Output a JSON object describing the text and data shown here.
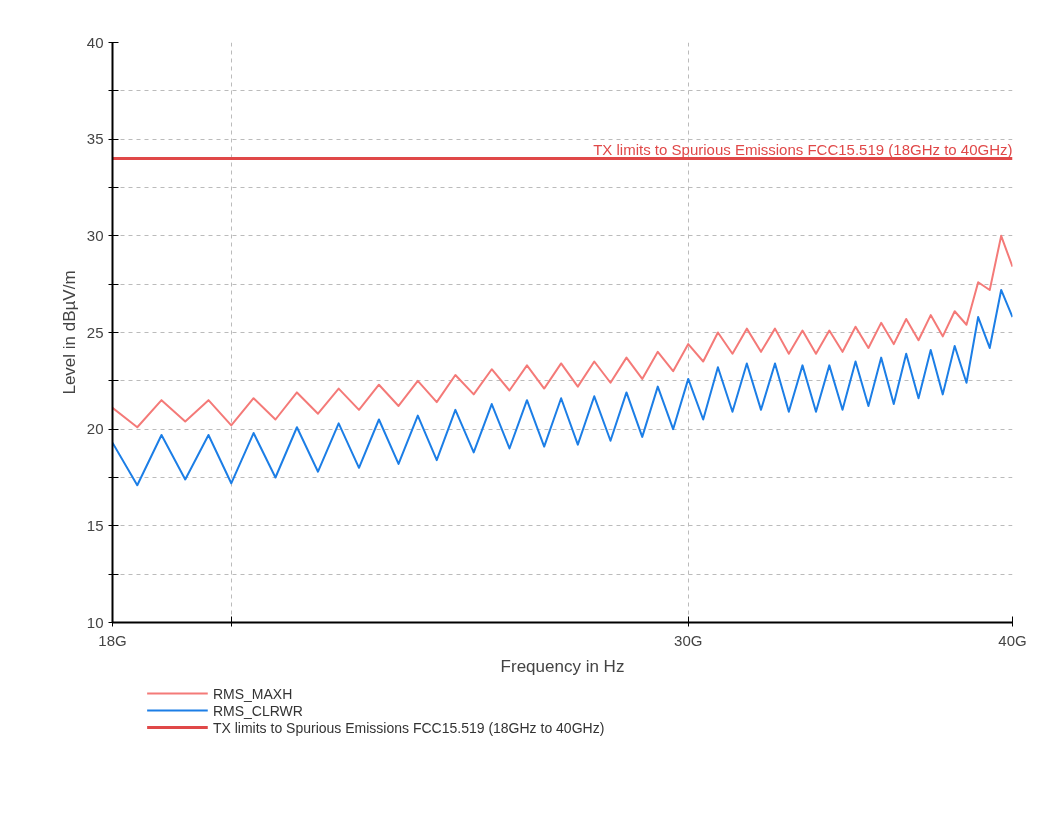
{
  "chart_data": {
    "type": "line",
    "xlabel": "Frequency in Hz",
    "ylabel": "Level in dBµV/m",
    "x": [
      18.0,
      18.4,
      18.8,
      19.2,
      19.6,
      20.0,
      20.4,
      20.8,
      21.2,
      21.6,
      22.0,
      22.4,
      22.8,
      23.2,
      23.6,
      24.0,
      24.4,
      24.8,
      25.2,
      25.6,
      26.0,
      26.4,
      26.8,
      27.2,
      27.6,
      28.0,
      28.4,
      28.8,
      29.2,
      29.6,
      30.0,
      30.4,
      30.8,
      31.2,
      31.6,
      32.0,
      32.4,
      32.8,
      33.2,
      33.6,
      34.0,
      34.4,
      34.8,
      35.2,
      35.6,
      36.0,
      36.4,
      36.8,
      37.2,
      37.6,
      38.0,
      38.4,
      38.8,
      39.2,
      39.6,
      40.0
    ],
    "series": [
      {
        "name": "RMS_MAXH",
        "color": "#f47a78",
        "values": [
          21.1,
          20.1,
          21.5,
          20.4,
          21.5,
          20.2,
          21.6,
          20.5,
          21.9,
          20.8,
          22.1,
          21.0,
          22.3,
          21.2,
          22.5,
          21.4,
          22.8,
          21.8,
          23.1,
          22.0,
          23.3,
          22.1,
          23.4,
          22.2,
          23.5,
          22.4,
          23.7,
          22.6,
          24.0,
          23.0,
          24.4,
          23.5,
          25.0,
          23.9,
          25.2,
          24.0,
          25.2,
          23.9,
          25.1,
          23.9,
          25.1,
          24.0,
          25.3,
          24.2,
          25.5,
          24.4,
          25.7,
          24.6,
          25.9,
          24.8,
          26.1,
          25.4,
          27.6,
          27.2,
          30.0,
          28.4
        ]
      },
      {
        "name": "RMS_CLRWR",
        "color": "#1c7ee6",
        "values": [
          19.3,
          17.1,
          19.7,
          17.4,
          19.7,
          17.2,
          19.8,
          17.5,
          20.1,
          17.8,
          20.3,
          18.0,
          20.5,
          18.2,
          20.7,
          18.4,
          21.0,
          18.8,
          21.3,
          19.0,
          21.5,
          19.1,
          21.6,
          19.2,
          21.7,
          19.4,
          21.9,
          19.6,
          22.2,
          20.0,
          22.6,
          20.5,
          23.2,
          20.9,
          23.4,
          21.0,
          23.4,
          20.9,
          23.3,
          20.9,
          23.3,
          21.0,
          23.5,
          21.2,
          23.7,
          21.3,
          23.9,
          21.6,
          24.1,
          21.8,
          24.3,
          22.4,
          25.8,
          24.2,
          27.2,
          25.8
        ]
      }
    ],
    "ref_lines": [
      {
        "axis": "y",
        "value": 34,
        "label": "TX limits to Spurious Emissions FCC15.519 (18GHz to 40GHz)",
        "color": "#e04848"
      }
    ],
    "log": "x",
    "xlim": [
      18,
      40
    ],
    "xticks": [
      {
        "value": 18,
        "label": "18G"
      },
      {
        "value": 20,
        "label": null
      },
      {
        "value": 30,
        "label": "30G"
      },
      {
        "value": 40,
        "label": "40G"
      }
    ],
    "ylim": [
      10,
      40
    ],
    "yticks": [
      10,
      {
        "value": 12.5,
        "label": null
      },
      15,
      {
        "value": 17.5,
        "label": null
      },
      20,
      {
        "value": 22.5,
        "label": null
      },
      25,
      {
        "value": 27.5,
        "label": null
      },
      30,
      {
        "value": 32.5,
        "label": null
      },
      35,
      {
        "value": 37.5,
        "label": null
      },
      40
    ],
    "grid": true,
    "legend": "bottom",
    "line_style": "solid"
  }
}
